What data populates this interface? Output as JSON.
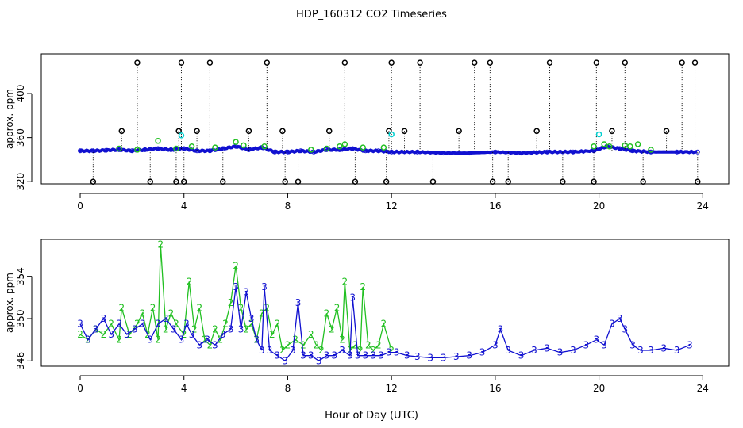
{
  "figure": {
    "title": "HDP_160312  CO2 Timeseries",
    "xlabel": "Hour of Day (UTC)"
  },
  "colors": {
    "black": "#000000",
    "green": "#22c022",
    "blue": "#1010d0",
    "cyan": "#00d0d0"
  },
  "chart_data": [
    {
      "type": "scatter",
      "panel": "top",
      "ylabel": "approx. ppm",
      "xlim": [
        -1.5,
        25
      ],
      "ylim": [
        318,
        436
      ],
      "xticks": [
        0,
        4,
        8,
        12,
        16,
        20,
        24
      ],
      "yticks": [
        320,
        360,
        400
      ],
      "grid": false,
      "base": [
        [
          0,
          348
        ],
        [
          0.5,
          348
        ],
        [
          1,
          348.5
        ],
        [
          1.5,
          349
        ],
        [
          2,
          348
        ],
        [
          2.5,
          349
        ],
        [
          3,
          350
        ],
        [
          3.5,
          349
        ],
        [
          4,
          350
        ],
        [
          4.5,
          348
        ],
        [
          5,
          348
        ],
        [
          5.5,
          350
        ],
        [
          6,
          352
        ],
        [
          6.5,
          349
        ],
        [
          7,
          351
        ],
        [
          7.5,
          347
        ],
        [
          8,
          347
        ],
        [
          8.5,
          348
        ],
        [
          9,
          347
        ],
        [
          9.5,
          349
        ],
        [
          10,
          349
        ],
        [
          10.5,
          350
        ],
        [
          11,
          348
        ],
        [
          11.5,
          348
        ],
        [
          12,
          347
        ],
        [
          13,
          347
        ],
        [
          14,
          346
        ],
        [
          15,
          346
        ],
        [
          16,
          347
        ],
        [
          17,
          346
        ],
        [
          18,
          347
        ],
        [
          19,
          347
        ],
        [
          19.8,
          348
        ],
        [
          20.3,
          352
        ],
        [
          20.8,
          350
        ],
        [
          21.3,
          348
        ],
        [
          22,
          347
        ],
        [
          23,
          347
        ],
        [
          23.8,
          347
        ]
      ],
      "series": [
        {
          "name": "black",
          "color": "#000000",
          "x": [
            0.5,
            1.6,
            2.2,
            2.7,
            3.7,
            3.8,
            3.9,
            4.0,
            4.5,
            5.0,
            5.5,
            6.5,
            7.2,
            7.8,
            7.9,
            8.4,
            9.6,
            10.2,
            10.6,
            11.8,
            11.9,
            12.0,
            12.5,
            13.1,
            13.6,
            14.6,
            15.2,
            15.8,
            15.9,
            16.5,
            17.6,
            18.1,
            18.6,
            19.8,
            19.9,
            20.5,
            21.0,
            21.7,
            22.6,
            23.2,
            23.7,
            23.8
          ],
          "y": [
            320,
            366,
            428,
            320,
            320,
            366,
            428,
            320,
            366,
            428,
            320,
            366,
            428,
            366,
            320,
            320,
            366,
            428,
            320,
            320,
            366,
            428,
            366,
            428,
            320,
            366,
            428,
            428,
            320,
            320,
            366,
            428,
            320,
            320,
            428,
            366,
            428,
            320,
            366,
            428,
            428,
            320
          ]
        },
        {
          "name": "green",
          "color": "#22c022",
          "x": [
            1.5,
            2.2,
            3.0,
            3.7,
            4.3,
            5.2,
            6.0,
            6.3,
            7.1,
            8.9,
            9.5,
            10.0,
            10.2,
            10.9,
            11.7,
            19.8,
            20.2,
            20.4,
            21.0,
            21.2,
            21.5,
            22.0
          ],
          "y": [
            350,
            349,
            357,
            350,
            352,
            351,
            356,
            353,
            352,
            349,
            350,
            352,
            354,
            351,
            351,
            352,
            354,
            352,
            353,
            352,
            354,
            349
          ]
        },
        {
          "name": "cyan",
          "color": "#00d0d0",
          "x": [
            3.9,
            12.0,
            20.0
          ],
          "y": [
            362,
            363,
            363
          ]
        }
      ]
    },
    {
      "type": "line",
      "panel": "bottom",
      "ylabel": "approx. ppm",
      "xlim": [
        -1.5,
        25
      ],
      "ylim": [
        345.5,
        357.5
      ],
      "xticks": [
        0,
        4,
        8,
        12,
        16,
        20,
        24
      ],
      "yticks": [
        346,
        350,
        354
      ],
      "grid": false,
      "series": [
        {
          "name": "2",
          "color": "#22c022",
          "x": [
            0.0,
            0.3,
            0.6,
            0.9,
            1.2,
            1.5,
            1.6,
            1.9,
            2.2,
            2.4,
            2.6,
            2.8,
            3.0,
            3.1,
            3.3,
            3.5,
            3.7,
            4.0,
            4.2,
            4.4,
            4.6,
            4.8,
            5.0,
            5.2,
            5.4,
            5.6,
            5.8,
            6.0,
            6.2,
            6.4,
            6.6,
            6.8,
            7.0,
            7.2,
            7.4,
            7.6,
            7.8,
            8.0,
            8.3,
            8.6,
            8.9,
            9.1,
            9.3,
            9.5,
            9.7,
            9.9,
            10.1,
            10.2,
            10.4,
            10.6,
            10.8,
            10.9,
            11.1,
            11.3,
            11.5,
            11.7,
            12.0
          ],
          "y": [
            348.5,
            348.0,
            349.0,
            348.5,
            349.5,
            348.0,
            351.0,
            348.5,
            349.5,
            350.5,
            348.5,
            351.0,
            348.0,
            357.0,
            349.0,
            350.5,
            349.5,
            348.5,
            353.5,
            349.0,
            351.0,
            348.0,
            347.5,
            349.0,
            348.0,
            349.5,
            351.5,
            355.0,
            351.0,
            349.0,
            349.5,
            348.0,
            350.5,
            351.0,
            348.5,
            349.5,
            347.0,
            347.5,
            348.0,
            347.5,
            348.5,
            347.5,
            347.0,
            350.5,
            349.0,
            351.0,
            348.0,
            353.5,
            347.0,
            347.5,
            347.0,
            353.0,
            347.5,
            347.0,
            347.5,
            349.5,
            347.0
          ]
        },
        {
          "name": "3",
          "color": "#1010d0",
          "x": [
            0.0,
            0.3,
            0.6,
            0.9,
            1.2,
            1.5,
            1.8,
            2.1,
            2.4,
            2.7,
            3.0,
            3.3,
            3.6,
            3.9,
            4.1,
            4.3,
            4.6,
            4.9,
            5.2,
            5.5,
            5.8,
            6.0,
            6.2,
            6.4,
            6.6,
            6.8,
            7.0,
            7.1,
            7.3,
            7.6,
            7.9,
            8.2,
            8.4,
            8.6,
            8.9,
            9.2,
            9.5,
            9.8,
            10.1,
            10.4,
            10.5,
            10.7,
            11.0,
            11.3,
            11.6,
            11.9,
            12.2,
            12.6,
            13.0,
            13.5,
            14.0,
            14.5,
            15.0,
            15.5,
            16.0,
            16.2,
            16.5,
            17.0,
            17.5,
            18.0,
            18.5,
            19.0,
            19.5,
            19.9,
            20.2,
            20.5,
            20.8,
            21.0,
            21.3,
            21.6,
            22.0,
            22.5,
            23.0,
            23.5
          ],
          "y": [
            349.5,
            348.0,
            349.0,
            350.0,
            348.5,
            349.5,
            348.5,
            349.0,
            349.5,
            348.0,
            349.5,
            350.0,
            349.0,
            348.0,
            349.5,
            348.5,
            347.5,
            348.0,
            347.5,
            348.5,
            349.0,
            353.0,
            349.0,
            352.5,
            350.0,
            348.0,
            347.0,
            353.0,
            347.0,
            346.5,
            346.0,
            347.0,
            351.5,
            346.5,
            346.5,
            346.0,
            346.5,
            346.5,
            347.0,
            346.5,
            352.0,
            346.5,
            346.5,
            346.5,
            346.5,
            346.8,
            346.8,
            346.5,
            346.4,
            346.3,
            346.3,
            346.4,
            346.5,
            346.8,
            347.5,
            349.0,
            347.0,
            346.5,
            347.0,
            347.2,
            346.8,
            347.0,
            347.5,
            348.0,
            347.5,
            349.5,
            350.0,
            349.0,
            347.5,
            347.0,
            347.0,
            347.2,
            347.0,
            347.5
          ]
        }
      ]
    }
  ]
}
